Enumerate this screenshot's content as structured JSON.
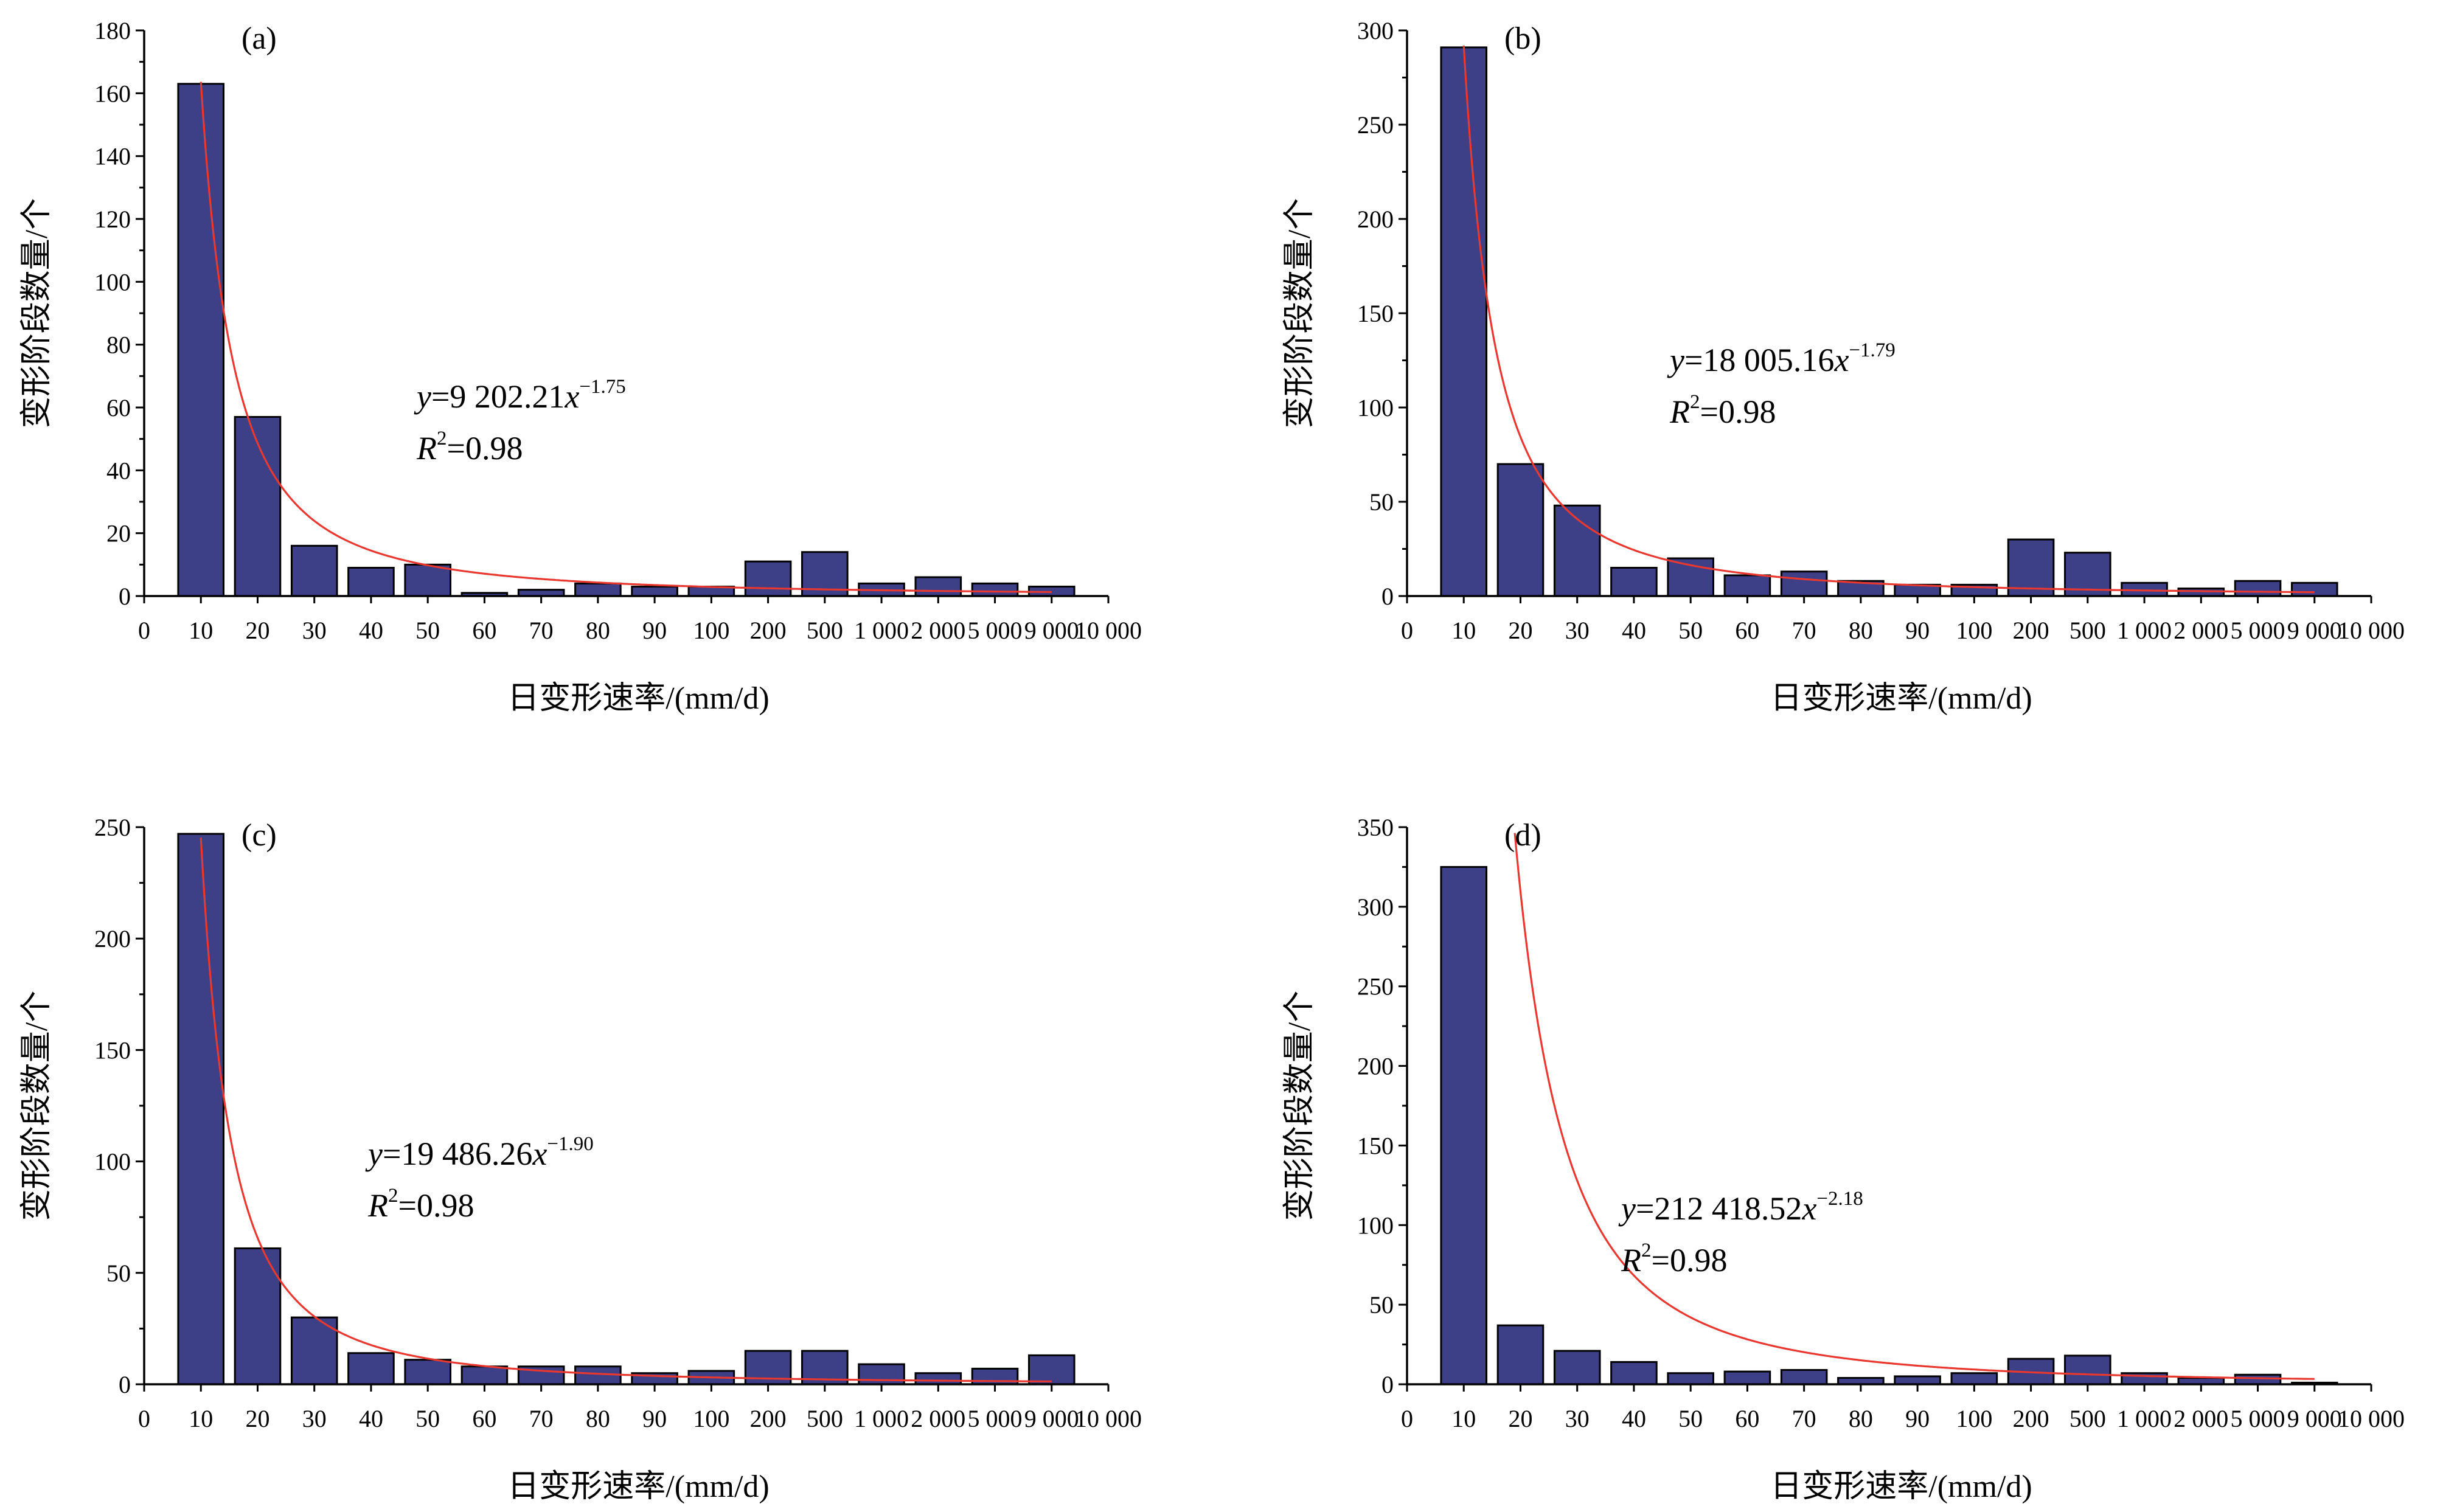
{
  "chart_data": [
    {
      "type": "bar",
      "panel_label": "(a)",
      "categories": [
        "10",
        "20",
        "30",
        "40",
        "50",
        "60",
        "70",
        "80",
        "90",
        "100",
        "200",
        "500",
        "1 000",
        "2 000",
        "5 000",
        "9 000"
      ],
      "x_tick_labels": [
        "0",
        "10",
        "20",
        "30",
        "40",
        "50",
        "60",
        "70",
        "80",
        "90",
        "100",
        "200",
        "500",
        "1 000",
        "2 000",
        "5 000",
        "9 000",
        "10 000"
      ],
      "values": [
        163,
        57,
        16,
        9,
        10,
        1,
        2,
        4,
        3,
        3,
        11,
        14,
        4,
        6,
        4,
        3
      ],
      "ylim": [
        0,
        180
      ],
      "y_ticks": [
        0,
        20,
        40,
        60,
        80,
        100,
        120,
        140,
        160,
        180
      ],
      "y_tick_labels": [
        "0",
        "20",
        "40",
        "60",
        "80",
        "100",
        "120",
        "140",
        "160",
        "180"
      ],
      "xlabel": "日变形速率/(mm/d)",
      "ylabel": "变形阶段数量/个",
      "fit": {
        "coef": 9202.21,
        "exp": -1.75,
        "equation_prefix": "y",
        "equation_body": "=9 202.21",
        "equation_x": "x",
        "equation_exp": "−1.75",
        "r2_prefix": "R",
        "r2_sup": "2",
        "r2_body": "=0.98"
      },
      "grid": false,
      "colors": {
        "bar": "#3d3f87",
        "fit": "#e8382f"
      }
    },
    {
      "type": "bar",
      "panel_label": "(b)",
      "categories": [
        "10",
        "20",
        "30",
        "40",
        "50",
        "60",
        "70",
        "80",
        "90",
        "100",
        "200",
        "500",
        "1 000",
        "2 000",
        "5 000",
        "9 000"
      ],
      "x_tick_labels": [
        "0",
        "10",
        "20",
        "30",
        "40",
        "50",
        "60",
        "70",
        "80",
        "90",
        "100",
        "200",
        "500",
        "1 000",
        "2 000",
        "5 000",
        "9 000",
        "10 000"
      ],
      "values": [
        291,
        70,
        48,
        15,
        20,
        11,
        13,
        8,
        6,
        6,
        30,
        23,
        7,
        4,
        8,
        7
      ],
      "ylim": [
        0,
        300
      ],
      "y_ticks": [
        0,
        50,
        100,
        150,
        200,
        250,
        300
      ],
      "y_tick_labels": [
        "0",
        "50",
        "100",
        "150",
        "200",
        "250",
        "300"
      ],
      "xlabel": "日变形速率/(mm/d)",
      "ylabel": "变形阶段数量/个",
      "fit": {
        "coef": 18005.16,
        "exp": -1.79,
        "equation_prefix": "y",
        "equation_body": "=18 005.16",
        "equation_x": "x",
        "equation_exp": "−1.79",
        "r2_prefix": "R",
        "r2_sup": "2",
        "r2_body": "=0.98"
      },
      "grid": false,
      "colors": {
        "bar": "#3d3f87",
        "fit": "#e8382f"
      }
    },
    {
      "type": "bar",
      "panel_label": "(c)",
      "categories": [
        "10",
        "20",
        "30",
        "40",
        "50",
        "60",
        "70",
        "80",
        "90",
        "100",
        "200",
        "500",
        "1 000",
        "2 000",
        "5 000",
        "9 000"
      ],
      "x_tick_labels": [
        "0",
        "10",
        "20",
        "30",
        "40",
        "50",
        "60",
        "70",
        "80",
        "90",
        "100",
        "200",
        "500",
        "1 000",
        "2 000",
        "5 000",
        "9 000",
        "10 000"
      ],
      "values": [
        247,
        61,
        30,
        14,
        11,
        8,
        8,
        8,
        5,
        6,
        15,
        15,
        9,
        5,
        7,
        13
      ],
      "ylim": [
        0,
        250
      ],
      "y_ticks": [
        0,
        50,
        100,
        150,
        200,
        250
      ],
      "y_tick_labels": [
        "0",
        "50",
        "100",
        "150",
        "200",
        "250"
      ],
      "xlabel": "日变形速率/(mm/d)",
      "ylabel": "变形阶段数量/个",
      "fit": {
        "coef": 19486.26,
        "exp": -1.9,
        "equation_prefix": "y",
        "equation_body": "=19 486.26",
        "equation_x": "x",
        "equation_exp": "−1.90",
        "r2_prefix": "R",
        "r2_sup": "2",
        "r2_body": "=0.98"
      },
      "grid": false,
      "colors": {
        "bar": "#3d3f87",
        "fit": "#e8382f"
      }
    },
    {
      "type": "bar",
      "panel_label": "(d)",
      "categories": [
        "10",
        "20",
        "30",
        "40",
        "50",
        "60",
        "70",
        "80",
        "90",
        "100",
        "200",
        "500",
        "1 000",
        "2 000",
        "5 000",
        "9 000"
      ],
      "x_tick_labels": [
        "0",
        "10",
        "20",
        "30",
        "40",
        "50",
        "60",
        "70",
        "80",
        "90",
        "100",
        "200",
        "500",
        "1 000",
        "2 000",
        "5 000",
        "9 000",
        "10 000"
      ],
      "values": [
        325,
        37,
        21,
        14,
        7,
        8,
        9,
        4,
        5,
        7,
        16,
        18,
        7,
        4,
        6,
        1
      ],
      "ylim": [
        0,
        350
      ],
      "y_ticks": [
        0,
        50,
        100,
        150,
        200,
        250,
        300,
        350
      ],
      "y_tick_labels": [
        "0",
        "50",
        "100",
        "150",
        "200",
        "250",
        "300",
        "350"
      ],
      "xlabel": "日变形速率/(mm/d)",
      "ylabel": "变形阶段数量/个",
      "fit": {
        "coef": 212418.52,
        "exp": -2.18,
        "equation_prefix": "y",
        "equation_body": "=212 418.52",
        "equation_x": "x",
        "equation_exp": "−2.18",
        "r2_prefix": "R",
        "r2_sup": "2",
        "r2_body": "=0.98"
      },
      "grid": false,
      "colors": {
        "bar": "#3d3f87",
        "fit": "#e8382f"
      }
    }
  ]
}
